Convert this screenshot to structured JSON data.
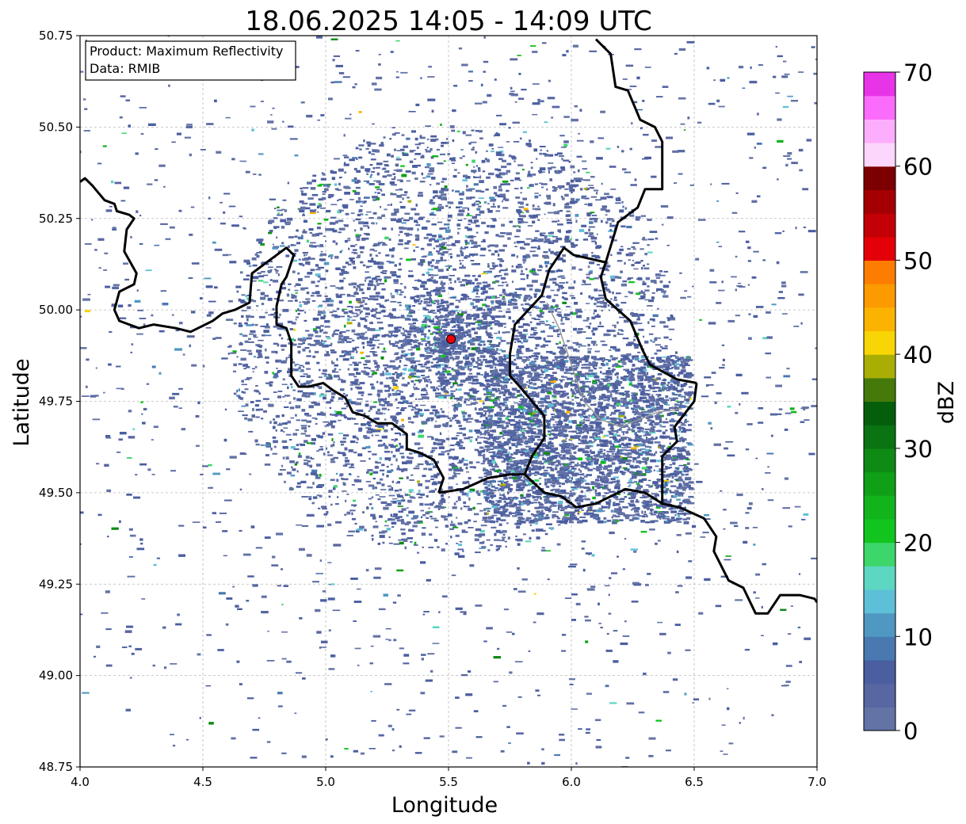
{
  "title": "18.06.2025 14:05 - 14:09 UTC",
  "info_box": {
    "line1": "Product: Maximum Reflectivity",
    "line2": "Data: RMIB"
  },
  "map": {
    "x_label": "Longitude",
    "y_label": "Latitude",
    "lon_range": [
      4.0,
      7.0
    ],
    "lat_range": [
      48.75,
      50.75
    ],
    "lon_ticks": [
      "4.0",
      "4.5",
      "5.0",
      "5.5",
      "6.0",
      "6.5",
      "7.0"
    ],
    "lat_ticks": [
      "50.75",
      "50.50",
      "50.25",
      "50.00",
      "49.75",
      "49.50",
      "49.25",
      "49.00",
      "48.75"
    ],
    "grid": true,
    "radar_site": {
      "lon": 5.51,
      "lat": 49.92,
      "color": "#e8000b"
    }
  },
  "colorbar": {
    "label": "dBZ",
    "ticks": [
      "0",
      "10",
      "20",
      "30",
      "40",
      "50",
      "60",
      "70"
    ],
    "range": [
      0,
      70
    ],
    "colors": [
      "#6373a6",
      "#5866a2",
      "#4a5ea0",
      "#4a78b0",
      "#4f98c2",
      "#5ebfd8",
      "#5dd6c2",
      "#3dd66b",
      "#12c51e",
      "#12b41c",
      "#10a018",
      "#0e8a15",
      "#0a7312",
      "#055e0c",
      "#457a0a",
      "#aaae04",
      "#f8d504",
      "#fcb300",
      "#fc9a00",
      "#fc7d00",
      "#e40008",
      "#c20005",
      "#a40003",
      "#7c0002",
      "#fcd6fc",
      "#fcaefc",
      "#fc6cfc",
      "#e834e8"
    ]
  },
  "chart_data": {
    "type": "heatmap",
    "title": "18.06.2025 14:05 - 14:09 UTC",
    "xlabel": "Longitude",
    "ylabel": "Latitude",
    "xlim": [
      4.0,
      7.0
    ],
    "ylim": [
      48.75,
      50.75
    ],
    "value_label": "dBZ",
    "value_range": [
      0,
      70
    ],
    "annotation": "Product: Maximum Reflectivity / Data: RMIB",
    "radar_site": {
      "lon": 5.51,
      "lat": 49.92
    },
    "borders": {
      "belgium_france": [
        [
          4.0,
          50.35
        ],
        [
          4.02,
          50.36
        ],
        [
          4.05,
          50.34
        ],
        [
          4.1,
          50.3
        ],
        [
          4.14,
          50.29
        ],
        [
          4.15,
          50.27
        ],
        [
          4.2,
          50.26
        ],
        [
          4.22,
          50.25
        ],
        [
          4.19,
          50.22
        ],
        [
          4.18,
          50.16
        ],
        [
          4.23,
          50.1
        ],
        [
          4.22,
          50.07
        ],
        [
          4.16,
          50.05
        ],
        [
          4.14,
          50.0
        ],
        [
          4.16,
          49.97
        ],
        [
          4.24,
          49.95
        ],
        [
          4.3,
          49.96
        ],
        [
          4.39,
          49.95
        ],
        [
          4.45,
          49.94
        ],
        [
          4.54,
          49.97
        ],
        [
          4.58,
          49.99
        ],
        [
          4.63,
          50.0
        ],
        [
          4.69,
          50.02
        ],
        [
          4.7,
          50.1
        ],
        [
          4.76,
          50.13
        ],
        [
          4.8,
          50.15
        ],
        [
          4.84,
          50.17
        ],
        [
          4.87,
          50.15
        ],
        [
          4.84,
          50.09
        ],
        [
          4.82,
          50.07
        ],
        [
          4.8,
          50.01
        ],
        [
          4.8,
          49.96
        ],
        [
          4.84,
          49.95
        ],
        [
          4.86,
          49.91
        ],
        [
          4.86,
          49.87
        ],
        [
          4.86,
          49.82
        ],
        [
          4.89,
          49.79
        ],
        [
          4.93,
          49.79
        ],
        [
          4.99,
          49.8
        ],
        [
          5.03,
          49.78
        ],
        [
          5.08,
          49.76
        ],
        [
          5.11,
          49.72
        ],
        [
          5.16,
          49.71
        ],
        [
          5.21,
          49.69
        ],
        [
          5.27,
          49.69
        ],
        [
          5.33,
          49.66
        ],
        [
          5.33,
          49.62
        ],
        [
          5.38,
          49.61
        ],
        [
          5.44,
          49.59
        ],
        [
          5.48,
          49.54
        ],
        [
          5.46,
          49.5
        ]
      ],
      "belgium_luxembourg": [
        [
          5.81,
          49.55
        ],
        [
          5.84,
          49.6
        ],
        [
          5.89,
          49.65
        ],
        [
          5.89,
          49.71
        ],
        [
          5.79,
          49.79
        ],
        [
          5.75,
          49.82
        ],
        [
          5.75,
          49.88
        ],
        [
          5.77,
          49.96
        ],
        [
          5.88,
          50.04
        ],
        [
          5.91,
          50.11
        ],
        [
          5.97,
          50.17
        ],
        [
          6.01,
          50.15
        ],
        [
          6.14,
          50.13
        ],
        [
          6.12,
          50.09
        ],
        [
          6.14,
          50.03
        ],
        [
          6.24,
          49.97
        ],
        [
          6.29,
          49.89
        ],
        [
          6.32,
          49.85
        ],
        [
          6.43,
          49.81
        ],
        [
          6.51,
          49.8
        ]
      ],
      "france_luxembourg_germany": [
        [
          5.46,
          49.5
        ],
        [
          5.56,
          49.51
        ],
        [
          5.66,
          49.54
        ],
        [
          5.75,
          49.55
        ],
        [
          5.81,
          49.55
        ],
        [
          5.89,
          49.5
        ],
        [
          5.96,
          49.49
        ],
        [
          6.02,
          49.46
        ],
        [
          6.1,
          49.47
        ],
        [
          6.22,
          49.51
        ],
        [
          6.3,
          49.5
        ],
        [
          6.37,
          49.47
        ],
        [
          6.44,
          49.46
        ],
        [
          6.54,
          49.43
        ],
        [
          6.59,
          49.38
        ],
        [
          6.58,
          49.34
        ],
        [
          6.64,
          49.26
        ],
        [
          6.7,
          49.24
        ],
        [
          6.75,
          49.17
        ],
        [
          6.8,
          49.17
        ],
        [
          6.85,
          49.22
        ],
        [
          6.93,
          49.22
        ],
        [
          6.99,
          49.21
        ],
        [
          7.0,
          49.2
        ]
      ],
      "luxembourg_germany": [
        [
          6.51,
          49.8
        ],
        [
          6.5,
          49.75
        ],
        [
          6.42,
          49.68
        ],
        [
          6.43,
          49.64
        ],
        [
          6.37,
          49.6
        ],
        [
          6.37,
          49.55
        ],
        [
          6.37,
          49.47
        ]
      ],
      "belgium_germany": [
        [
          6.14,
          50.13
        ],
        [
          6.19,
          50.24
        ],
        [
          6.27,
          50.28
        ],
        [
          6.3,
          50.33
        ],
        [
          6.37,
          50.33
        ],
        [
          6.37,
          50.46
        ],
        [
          6.34,
          50.5
        ],
        [
          6.28,
          50.52
        ],
        [
          6.23,
          50.6
        ],
        [
          6.18,
          50.61
        ],
        [
          6.16,
          50.7
        ],
        [
          6.1,
          50.74
        ]
      ]
    }
  }
}
